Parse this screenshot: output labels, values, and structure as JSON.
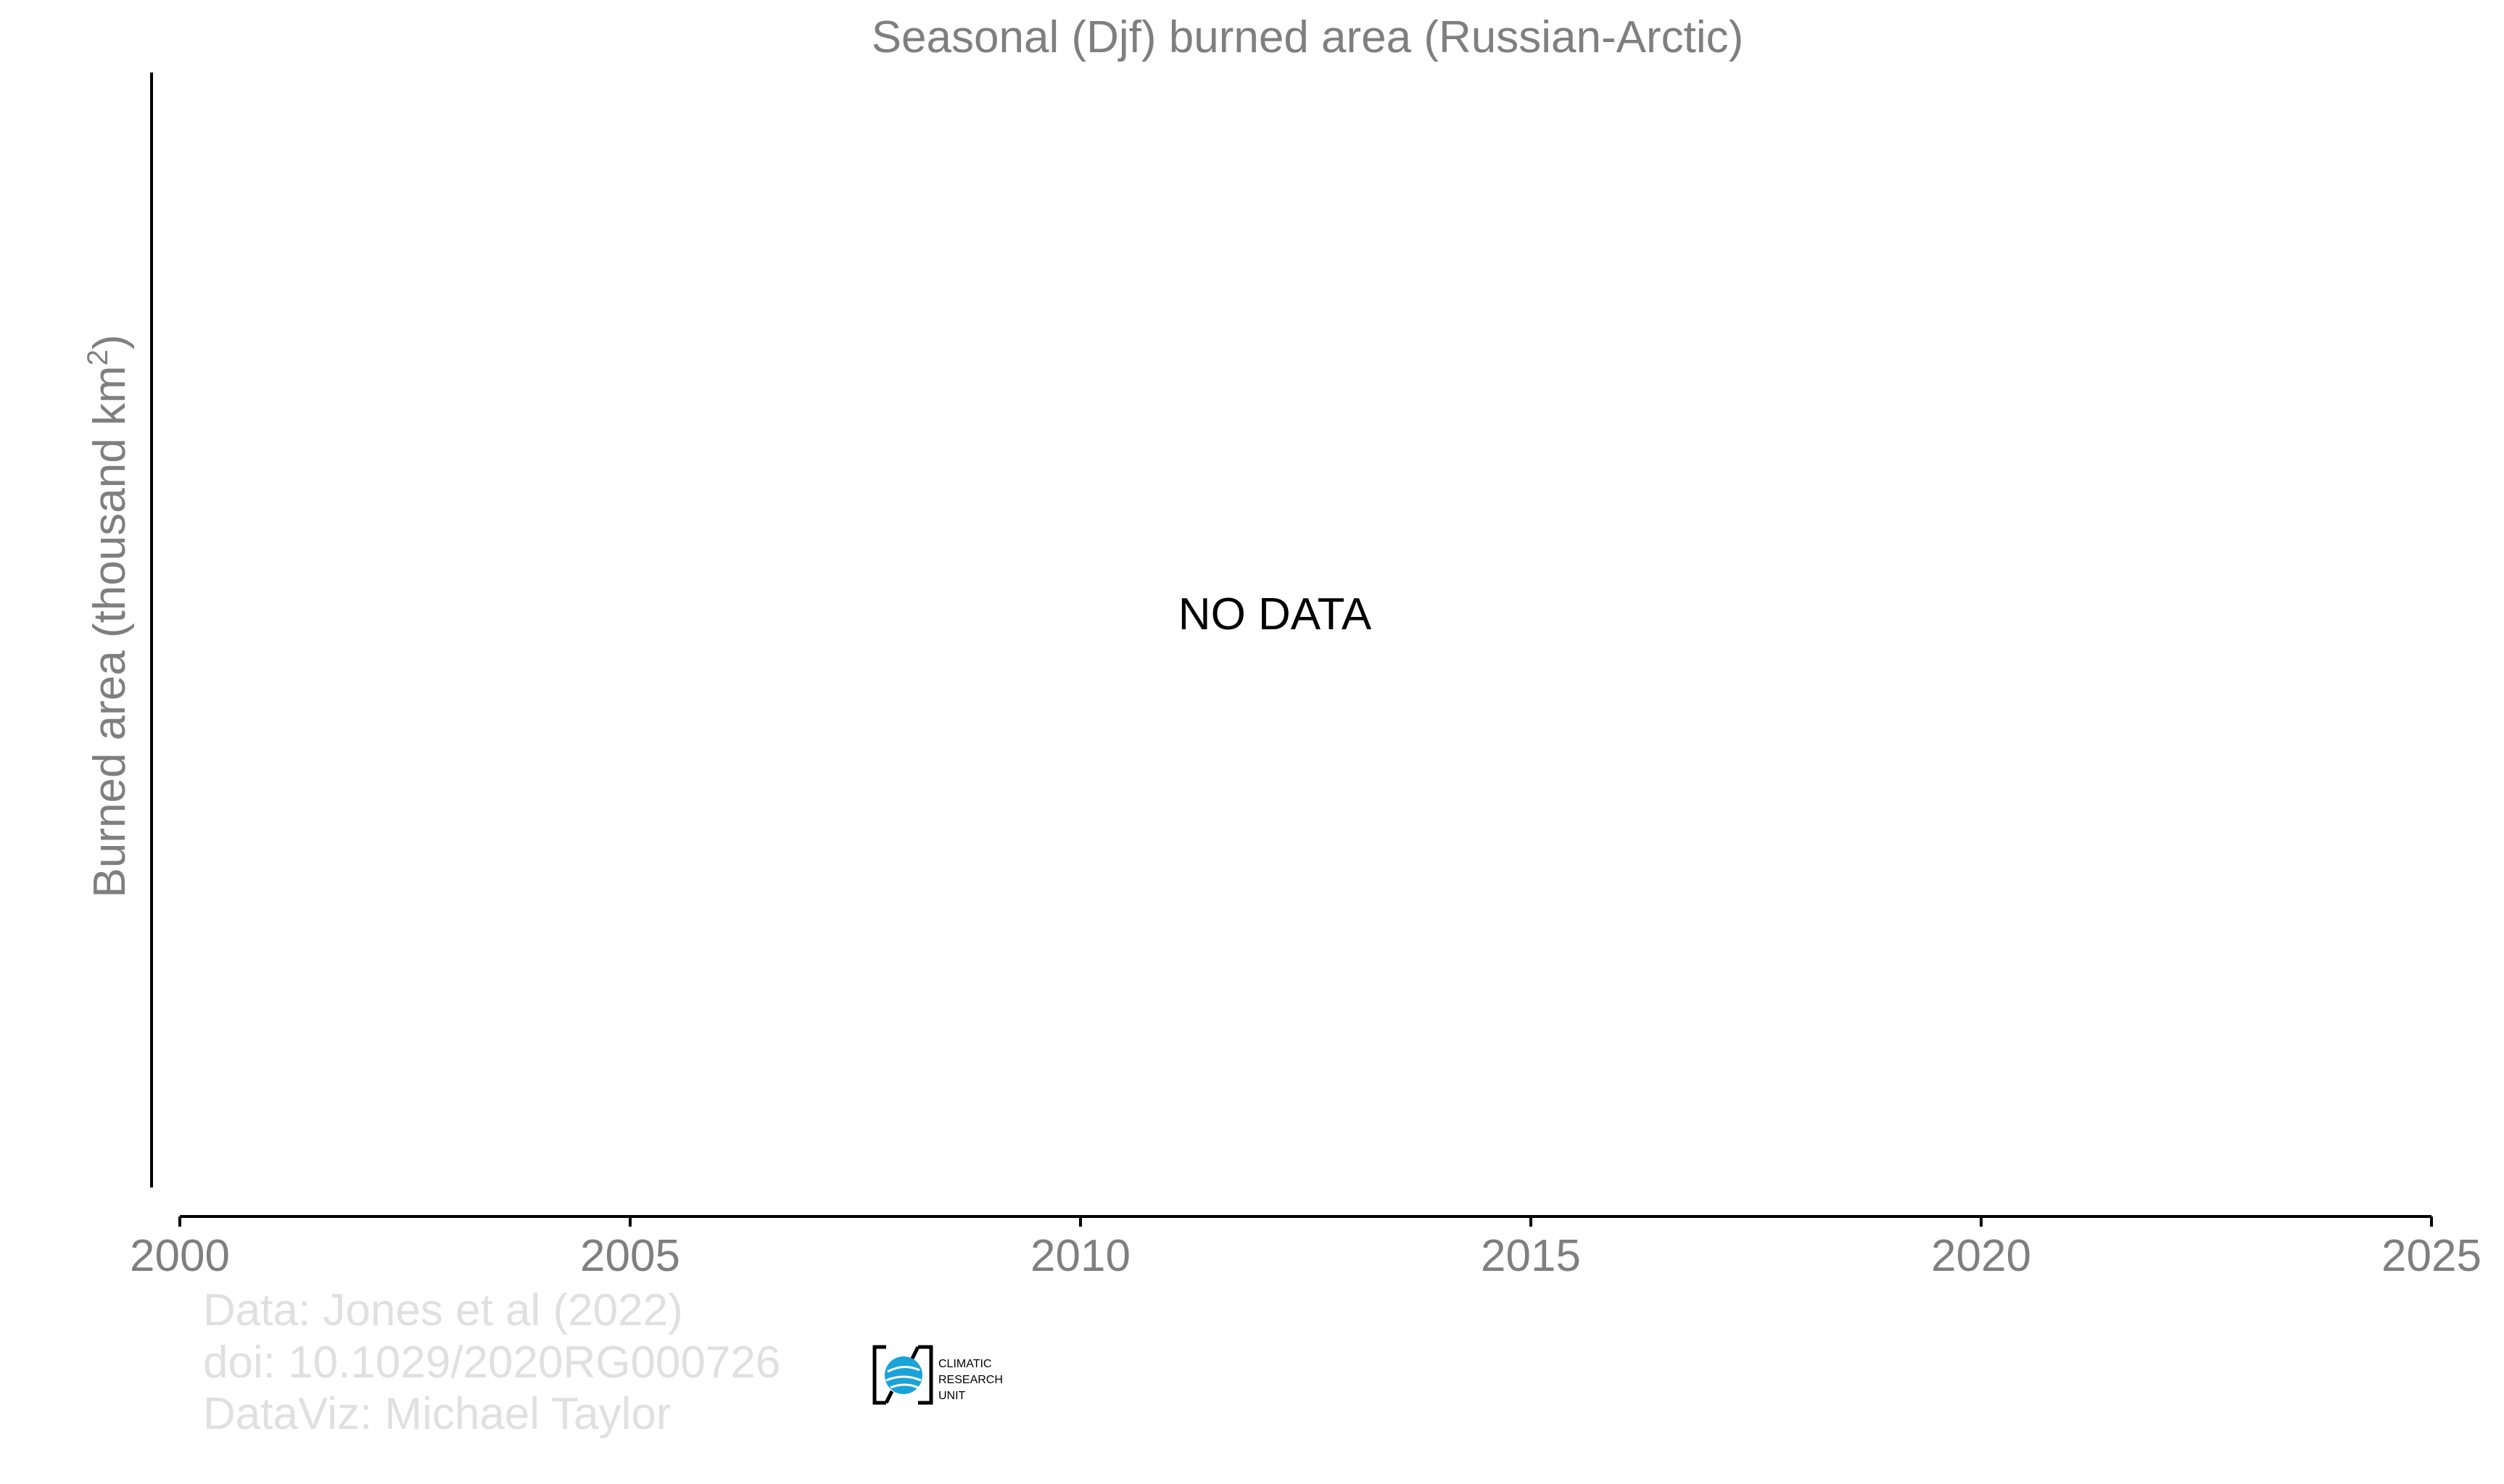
{
  "chart_data": {
    "type": "line",
    "title": "Seasonal (Djf) burned area (Russian-Arctic)",
    "xlabel": "",
    "ylabel_main": "Burned area (thousand km",
    "ylabel_sup": "2",
    "ylabel_close": ")",
    "xlim": [
      2000,
      2025
    ],
    "xticks": [
      2000,
      2005,
      2010,
      2015,
      2020,
      2025
    ],
    "xtick_labels": [
      "2000",
      "2005",
      "2010",
      "2015",
      "2020",
      "2025"
    ],
    "series": [],
    "annotation": "NO DATA",
    "grid": false,
    "legend": "none"
  },
  "credits": {
    "line1": "Data: Jones et al (2022)",
    "line2": "doi: 10.1029/2020RG000726",
    "line3": "DataViz: Michael Taylor"
  },
  "logo": {
    "text_line1": "CLIMATIC",
    "text_line2": "RESEARCH",
    "text_line3": "UNIT"
  },
  "colors": {
    "title": "#7f7f7f",
    "axis_label": "#7f7f7f",
    "tick_label": "#7f7f7f",
    "axis_line": "#000000",
    "annotation": "#000000",
    "credits": "#e0e0e0",
    "logo_globe": "#1aa3d8"
  }
}
